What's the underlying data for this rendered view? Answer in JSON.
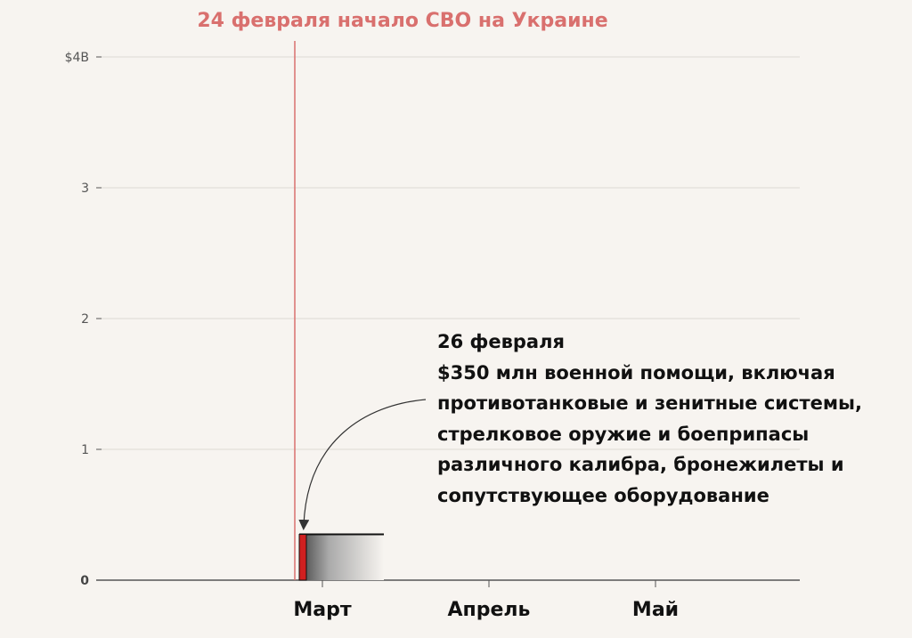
{
  "chart_data": {
    "type": "bar",
    "x_axis_labels": [
      "Март",
      "Апрель",
      "Май"
    ],
    "y_ticks": [
      "$4B",
      "3",
      "2",
      "1",
      "0"
    ],
    "y_tick_values": [
      4,
      3,
      2,
      1,
      0
    ],
    "ylim": [
      0,
      4
    ],
    "grid": true,
    "bars": [
      {
        "label": "26 февраля",
        "value": 0.35,
        "color": "#d02020"
      }
    ],
    "event_line": {
      "label": "24 февраля начало СВО на Украине",
      "color": "#d9706e"
    },
    "annotation": {
      "date": "26 февраля",
      "lines": [
        "$350 млн военной помощи, включая",
        "противотанковые и зенитные системы,",
        "стрелковое оружие и боеприпасы",
        "различного калибра, бронежилеты и",
        "сопутствующее оборудование"
      ]
    }
  }
}
